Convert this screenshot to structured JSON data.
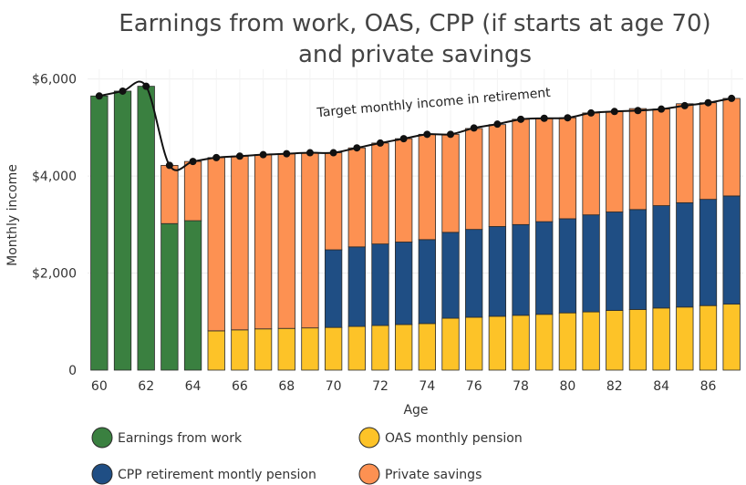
{
  "chart_data": {
    "type": "bar",
    "title": "Earnings from work, OAS, CPP (if starts at age 70) and private savings",
    "title_lines": [
      "Earnings from work, OAS, CPP (if starts at age 70)",
      "and private savings"
    ],
    "xlabel": "Age",
    "ylabel": "Monthly income",
    "ylim": [
      0,
      6200
    ],
    "yticks": [
      0,
      2000,
      4000,
      6000
    ],
    "ytick_labels": [
      "0",
      "$2,000",
      "$4,000",
      "$6,000"
    ],
    "categories": [
      60,
      61,
      62,
      63,
      64,
      65,
      66,
      67,
      68,
      69,
      70,
      71,
      72,
      73,
      74,
      75,
      76,
      77,
      78,
      79,
      80,
      81,
      82,
      83,
      84,
      85,
      86,
      87
    ],
    "xtick_labels": [
      "60",
      "62",
      "64",
      "66",
      "68",
      "70",
      "72",
      "74",
      "76",
      "78",
      "80",
      "82",
      "84",
      "86"
    ],
    "stacked": true,
    "grid": true,
    "legend_position": "bottom",
    "series": [
      {
        "name": "Earnings from work",
        "color": "#3a8040",
        "values": [
          5650,
          5750,
          5850,
          3020,
          3080,
          0,
          0,
          0,
          0,
          0,
          0,
          0,
          0,
          0,
          0,
          0,
          0,
          0,
          0,
          0,
          0,
          0,
          0,
          0,
          0,
          0,
          0,
          0
        ]
      },
      {
        "name": "OAS monthly pension",
        "color": "#fdc328",
        "values": [
          0,
          0,
          0,
          0,
          0,
          810,
          830,
          850,
          860,
          870,
          880,
          900,
          920,
          940,
          960,
          1070,
          1090,
          1110,
          1130,
          1150,
          1180,
          1200,
          1230,
          1250,
          1280,
          1300,
          1330,
          1360
        ]
      },
      {
        "name": "CPP retirement montly pension",
        "color": "#1f4e84",
        "values": [
          0,
          0,
          0,
          0,
          0,
          0,
          0,
          0,
          0,
          0,
          1600,
          1640,
          1680,
          1700,
          1730,
          1770,
          1810,
          1850,
          1870,
          1910,
          1940,
          2000,
          2030,
          2060,
          2110,
          2150,
          2190,
          2230
        ]
      },
      {
        "name": "Private savings",
        "color": "#fd9152",
        "values": [
          0,
          0,
          0,
          1200,
          1220,
          3570,
          3580,
          3590,
          3600,
          3610,
          2000,
          2040,
          2080,
          2130,
          2170,
          2020,
          2080,
          2100,
          2170,
          2130,
          2080,
          2100,
          2070,
          2080,
          1990,
          2040,
          1990,
          2010
        ]
      }
    ],
    "target_line": {
      "label": "Target monthly income in retirement",
      "color": "#111111",
      "values": [
        5650,
        5750,
        5850,
        4220,
        4300,
        4380,
        4410,
        4440,
        4460,
        4480,
        4480,
        4580,
        4680,
        4770,
        4860,
        4860,
        4990,
        5070,
        5170,
        5190,
        5200,
        5300,
        5330,
        5350,
        5380,
        5450,
        5510,
        5600
      ]
    }
  }
}
